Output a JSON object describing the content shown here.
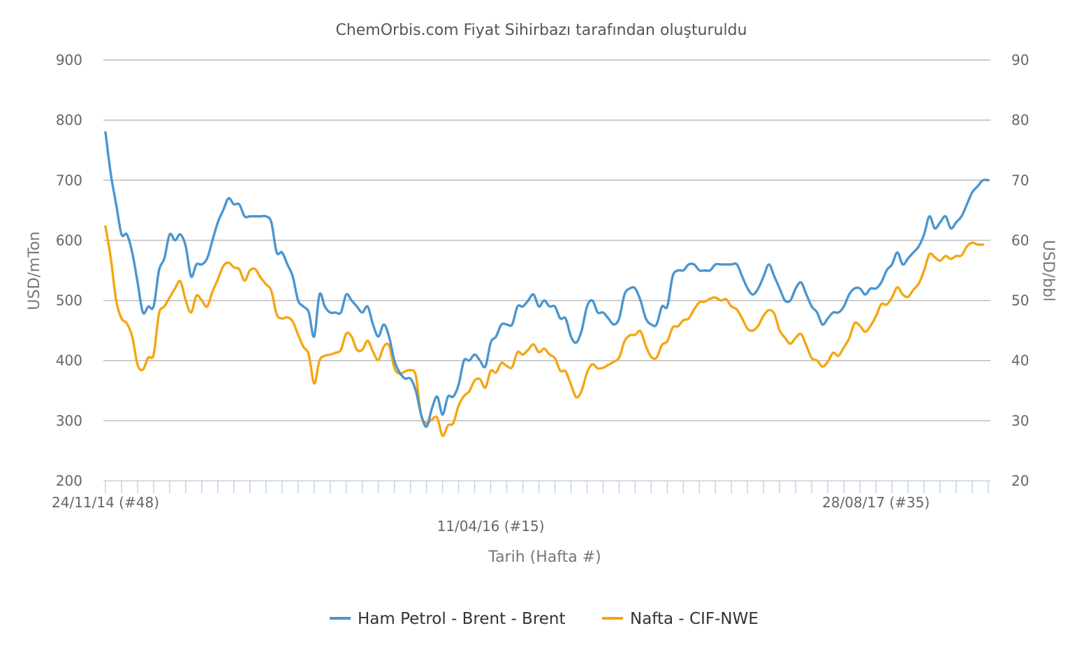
{
  "chart_data": {
    "type": "line",
    "title": "ChemOrbis.com Fiyat Sihirbazı tarafından oluşturuldu",
    "xlabel": "Tarih (Hafta #)",
    "ylabel": "USD/mTon",
    "y2label": "USD/bbl",
    "ylim": [
      200,
      900
    ],
    "y2lim": [
      20,
      90
    ],
    "y_ticks": [
      "900",
      "800",
      "700",
      "600",
      "500",
      "400",
      "300",
      "200"
    ],
    "y2_ticks": [
      "90",
      "80",
      "70",
      "60",
      "50",
      "40",
      "30",
      "20"
    ],
    "x_tick_labels": [
      "24/11/14 (#48)",
      "11/04/16 (#15)",
      "28/08/17 (#35)"
    ],
    "x_tick_label_weeks": [
      0,
      72,
      144
    ],
    "x_range_weeks": [
      0,
      165
    ],
    "grid": true,
    "legend_position": "bottom",
    "series": [
      {
        "name": "Ham Petrol - Brent - Brent",
        "axis": "right",
        "color": "#4a96cf",
        "points": [
          [
            0,
            78
          ],
          [
            1,
            71
          ],
          [
            2,
            66
          ],
          [
            3,
            61
          ],
          [
            4,
            61
          ],
          [
            5,
            58
          ],
          [
            6,
            53
          ],
          [
            7,
            48
          ],
          [
            8,
            49
          ],
          [
            9,
            49
          ],
          [
            10,
            55
          ],
          [
            11,
            57
          ],
          [
            12,
            61
          ],
          [
            13,
            60
          ],
          [
            14,
            61
          ],
          [
            15,
            59
          ],
          [
            16,
            54
          ],
          [
            17,
            56
          ],
          [
            18,
            56
          ],
          [
            19,
            57
          ],
          [
            20,
            60
          ],
          [
            21,
            63
          ],
          [
            22,
            65
          ],
          [
            23,
            67
          ],
          [
            24,
            66
          ],
          [
            25,
            66
          ],
          [
            26,
            64
          ],
          [
            27,
            64
          ],
          [
            28,
            64
          ],
          [
            29,
            64
          ],
          [
            30,
            64
          ],
          [
            31,
            63
          ],
          [
            32,
            58
          ],
          [
            33,
            58
          ],
          [
            34,
            56
          ],
          [
            35,
            54
          ],
          [
            36,
            50
          ],
          [
            37,
            49
          ],
          [
            38,
            48
          ],
          [
            39,
            44
          ],
          [
            40,
            51
          ],
          [
            41,
            49
          ],
          [
            42,
            48
          ],
          [
            43,
            48
          ],
          [
            44,
            48
          ],
          [
            45,
            51
          ],
          [
            46,
            50
          ],
          [
            47,
            49
          ],
          [
            48,
            48
          ],
          [
            49,
            49
          ],
          [
            50,
            46
          ],
          [
            51,
            44
          ],
          [
            52,
            46
          ],
          [
            53,
            44
          ],
          [
            54,
            40
          ],
          [
            55,
            38
          ],
          [
            56,
            37
          ],
          [
            57,
            37
          ],
          [
            58,
            35
          ],
          [
            59,
            31
          ],
          [
            60,
            29
          ],
          [
            61,
            32
          ],
          [
            62,
            34
          ],
          [
            63,
            31
          ],
          [
            64,
            34
          ],
          [
            65,
            34
          ],
          [
            66,
            36
          ],
          [
            67,
            40
          ],
          [
            68,
            40
          ],
          [
            69,
            41
          ],
          [
            70,
            40
          ],
          [
            71,
            39
          ],
          [
            72,
            43
          ],
          [
            73,
            44
          ],
          [
            74,
            46
          ],
          [
            75,
            46
          ],
          [
            76,
            46
          ],
          [
            77,
            49
          ],
          [
            78,
            49
          ],
          [
            79,
            50
          ],
          [
            80,
            51
          ],
          [
            81,
            49
          ],
          [
            82,
            50
          ],
          [
            83,
            49
          ],
          [
            84,
            49
          ],
          [
            85,
            47
          ],
          [
            86,
            47
          ],
          [
            87,
            44
          ],
          [
            88,
            43
          ],
          [
            89,
            45
          ],
          [
            90,
            49
          ],
          [
            91,
            50
          ],
          [
            92,
            48
          ],
          [
            93,
            48
          ],
          [
            94,
            47
          ],
          [
            95,
            46
          ],
          [
            96,
            47
          ],
          [
            97,
            51
          ],
          [
            98,
            52
          ],
          [
            99,
            52
          ],
          [
            100,
            50
          ],
          [
            101,
            47
          ],
          [
            102,
            46
          ],
          [
            103,
            46
          ],
          [
            104,
            49
          ],
          [
            105,
            49
          ],
          [
            106,
            54
          ],
          [
            107,
            55
          ],
          [
            108,
            55
          ],
          [
            109,
            56
          ],
          [
            110,
            56
          ],
          [
            111,
            55
          ],
          [
            112,
            55
          ],
          [
            113,
            55
          ],
          [
            114,
            56
          ],
          [
            115,
            56
          ],
          [
            116,
            56
          ],
          [
            117,
            56
          ],
          [
            118,
            56
          ],
          [
            119,
            54
          ],
          [
            120,
            52
          ],
          [
            121,
            51
          ],
          [
            122,
            52
          ],
          [
            123,
            54
          ],
          [
            124,
            56
          ],
          [
            125,
            54
          ],
          [
            126,
            52
          ],
          [
            127,
            50
          ],
          [
            128,
            50
          ],
          [
            129,
            52
          ],
          [
            130,
            53
          ],
          [
            131,
            51
          ],
          [
            132,
            49
          ],
          [
            133,
            48
          ],
          [
            134,
            46
          ],
          [
            135,
            47
          ],
          [
            136,
            48
          ],
          [
            137,
            48
          ],
          [
            138,
            49
          ],
          [
            139,
            51
          ],
          [
            140,
            52
          ],
          [
            141,
            52
          ],
          [
            142,
            51
          ],
          [
            143,
            52
          ],
          [
            144,
            52
          ],
          [
            145,
            53
          ],
          [
            146,
            55
          ],
          [
            147,
            56
          ],
          [
            148,
            58
          ],
          [
            149,
            56
          ],
          [
            150,
            57
          ],
          [
            151,
            58
          ],
          [
            152,
            59
          ],
          [
            153,
            61
          ],
          [
            154,
            64
          ],
          [
            155,
            62
          ],
          [
            156,
            63
          ],
          [
            157,
            64
          ],
          [
            158,
            62
          ],
          [
            159,
            63
          ],
          [
            160,
            64
          ],
          [
            161,
            66
          ],
          [
            162,
            68
          ],
          [
            163,
            69
          ],
          [
            164,
            70
          ],
          [
            165,
            70
          ]
        ]
      },
      {
        "name": "Nafta - CIF-NWE",
        "axis": "left",
        "color": "#f5a614",
        "points": [
          [
            0,
            623
          ],
          [
            1,
            570
          ],
          [
            2,
            500
          ],
          [
            3,
            470
          ],
          [
            4,
            462
          ],
          [
            5,
            440
          ],
          [
            6,
            393
          ],
          [
            7,
            385
          ],
          [
            8,
            405
          ],
          [
            9,
            410
          ],
          [
            10,
            478
          ],
          [
            11,
            490
          ],
          [
            12,
            505
          ],
          [
            13,
            520
          ],
          [
            14,
            532
          ],
          [
            15,
            500
          ],
          [
            16,
            480
          ],
          [
            17,
            508
          ],
          [
            18,
            500
          ],
          [
            19,
            490
          ],
          [
            20,
            515
          ],
          [
            21,
            535
          ],
          [
            22,
            557
          ],
          [
            23,
            563
          ],
          [
            24,
            555
          ],
          [
            25,
            552
          ],
          [
            26,
            533
          ],
          [
            27,
            550
          ],
          [
            28,
            552
          ],
          [
            29,
            538
          ],
          [
            30,
            527
          ],
          [
            31,
            516
          ],
          [
            32,
            477
          ],
          [
            33,
            470
          ],
          [
            34,
            472
          ],
          [
            35,
            465
          ],
          [
            36,
            443
          ],
          [
            37,
            423
          ],
          [
            38,
            410
          ],
          [
            39,
            362
          ],
          [
            40,
            400
          ],
          [
            41,
            408
          ],
          [
            42,
            410
          ],
          [
            43,
            413
          ],
          [
            44,
            418
          ],
          [
            45,
            445
          ],
          [
            46,
            440
          ],
          [
            47,
            418
          ],
          [
            48,
            418
          ],
          [
            49,
            433
          ],
          [
            50,
            415
          ],
          [
            51,
            401
          ],
          [
            52,
            423
          ],
          [
            53,
            425
          ],
          [
            54,
            388
          ],
          [
            55,
            378
          ],
          [
            56,
            382
          ],
          [
            57,
            384
          ],
          [
            58,
            375
          ],
          [
            59,
            309
          ],
          [
            60,
            296
          ],
          [
            61,
            302
          ],
          [
            62,
            305
          ],
          [
            63,
            275
          ],
          [
            64,
            292
          ],
          [
            65,
            296
          ],
          [
            66,
            325
          ],
          [
            67,
            341
          ],
          [
            68,
            349
          ],
          [
            69,
            367
          ],
          [
            70,
            369
          ],
          [
            71,
            355
          ],
          [
            72,
            383
          ],
          [
            73,
            380
          ],
          [
            74,
            396
          ],
          [
            75,
            391
          ],
          [
            76,
            389
          ],
          [
            77,
            414
          ],
          [
            78,
            410
          ],
          [
            79,
            418
          ],
          [
            80,
            427
          ],
          [
            81,
            414
          ],
          [
            82,
            420
          ],
          [
            83,
            410
          ],
          [
            84,
            404
          ],
          [
            85,
            383
          ],
          [
            86,
            382
          ],
          [
            87,
            360
          ],
          [
            88,
            339
          ],
          [
            89,
            350
          ],
          [
            90,
            380
          ],
          [
            91,
            394
          ],
          [
            92,
            387
          ],
          [
            93,
            388
          ],
          [
            94,
            393
          ],
          [
            95,
            398
          ],
          [
            96,
            405
          ],
          [
            97,
            432
          ],
          [
            98,
            442
          ],
          [
            99,
            443
          ],
          [
            100,
            449
          ],
          [
            101,
            424
          ],
          [
            102,
            406
          ],
          [
            103,
            405
          ],
          [
            104,
            426
          ],
          [
            105,
            432
          ],
          [
            106,
            455
          ],
          [
            107,
            457
          ],
          [
            108,
            467
          ],
          [
            109,
            470
          ],
          [
            110,
            485
          ],
          [
            111,
            497
          ],
          [
            112,
            498
          ],
          [
            113,
            503
          ],
          [
            114,
            505
          ],
          [
            115,
            500
          ],
          [
            116,
            502
          ],
          [
            117,
            490
          ],
          [
            118,
            485
          ],
          [
            119,
            470
          ],
          [
            120,
            453
          ],
          [
            121,
            450
          ],
          [
            122,
            458
          ],
          [
            123,
            475
          ],
          [
            124,
            484
          ],
          [
            125,
            478
          ],
          [
            126,
            450
          ],
          [
            127,
            438
          ],
          [
            128,
            428
          ],
          [
            129,
            438
          ],
          [
            130,
            444
          ],
          [
            131,
            425
          ],
          [
            132,
            404
          ],
          [
            133,
            400
          ],
          [
            134,
            390
          ],
          [
            135,
            398
          ],
          [
            136,
            413
          ],
          [
            137,
            408
          ],
          [
            138,
            422
          ],
          [
            139,
            437
          ],
          [
            140,
            462
          ],
          [
            141,
            458
          ],
          [
            142,
            448
          ],
          [
            143,
            458
          ],
          [
            144,
            474
          ],
          [
            145,
            494
          ],
          [
            146,
            493
          ],
          [
            147,
            505
          ],
          [
            148,
            522
          ],
          [
            149,
            510
          ],
          [
            150,
            506
          ],
          [
            151,
            518
          ],
          [
            152,
            528
          ],
          [
            153,
            550
          ],
          [
            154,
            577
          ],
          [
            155,
            572
          ],
          [
            156,
            566
          ],
          [
            157,
            574
          ],
          [
            158,
            569
          ],
          [
            159,
            574
          ],
          [
            160,
            575
          ],
          [
            161,
            590
          ],
          [
            162,
            596
          ],
          [
            163,
            593
          ],
          [
            164,
            593
          ]
        ]
      }
    ]
  }
}
